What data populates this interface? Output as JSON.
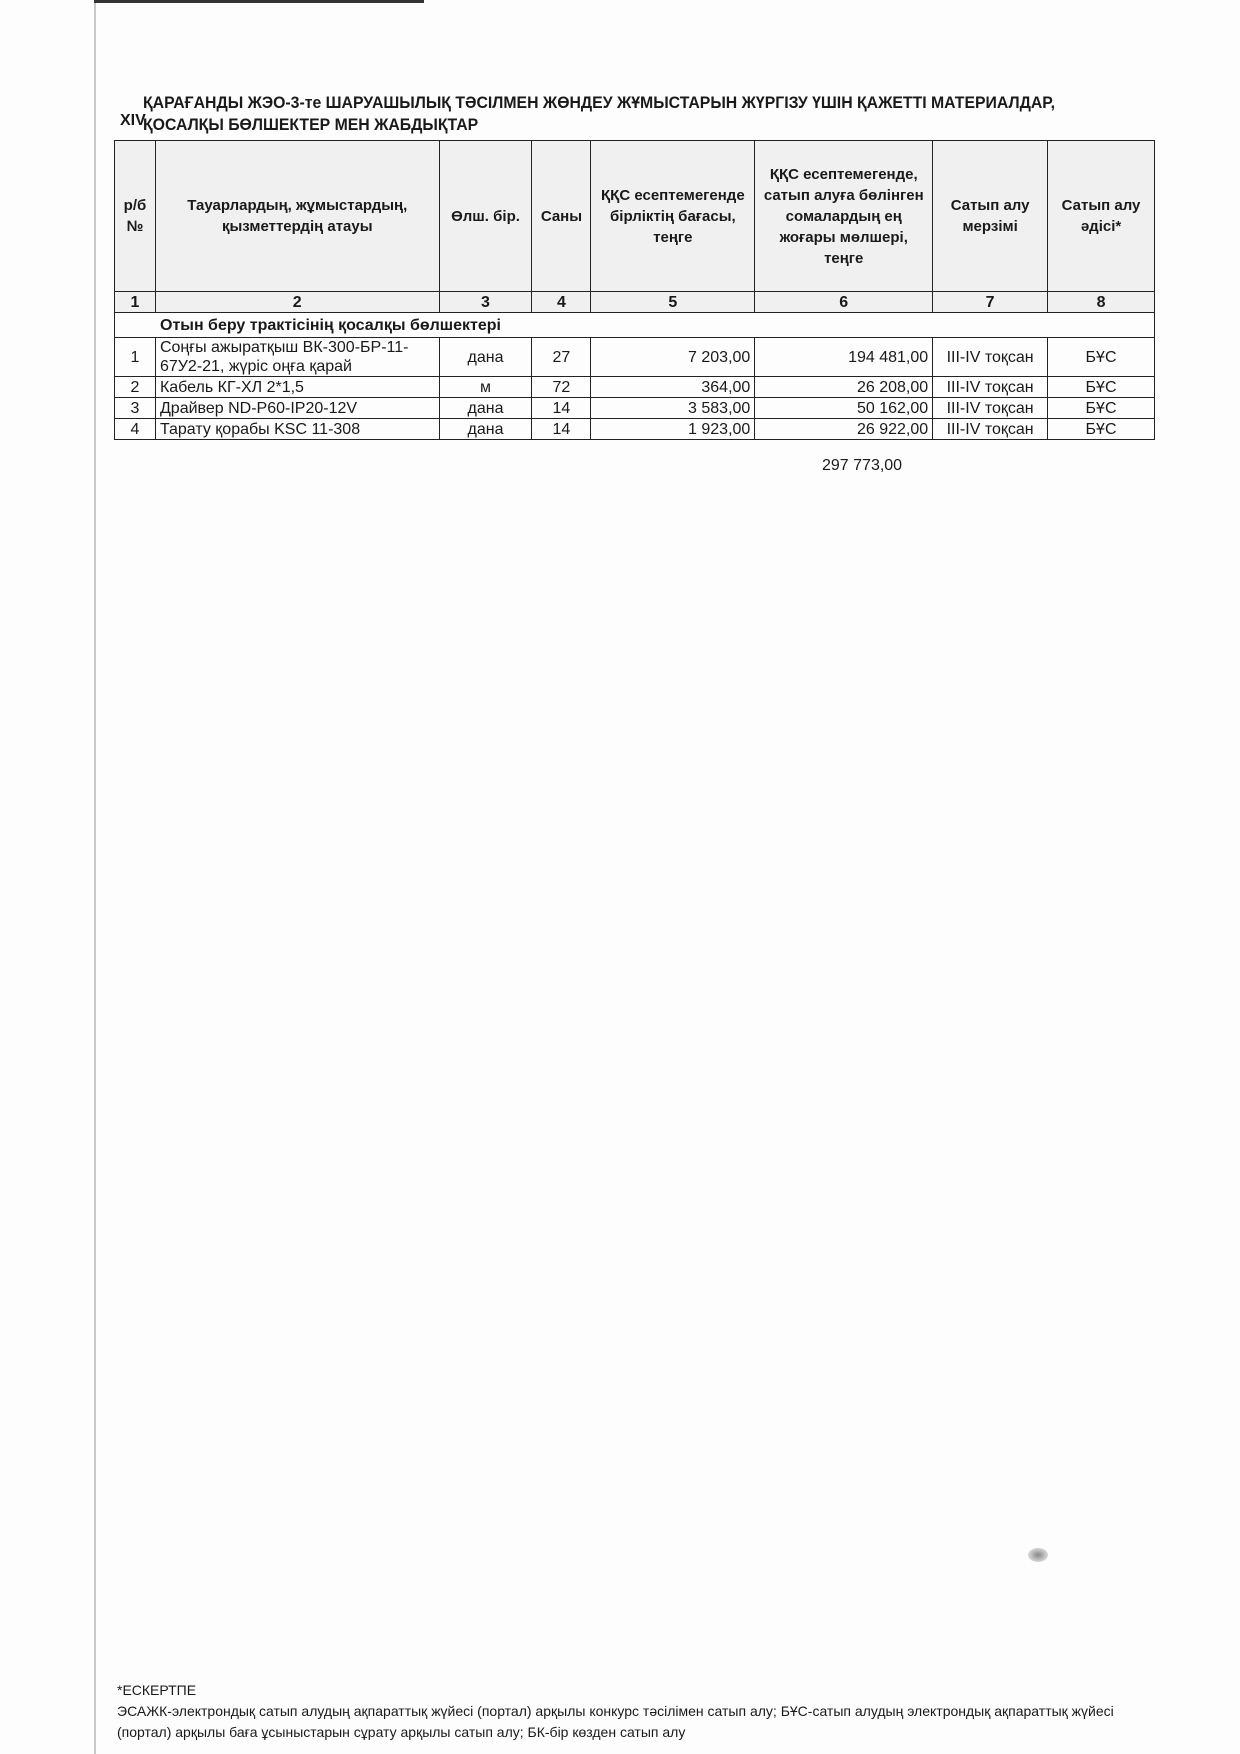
{
  "section_number": "XIV",
  "title_line1": "ҚАРАҒАНДЫ ЖЭО-3-те ШАРУАШЫЛЫҚ ТӘСІЛМЕН ЖӨНДЕУ ЖҰМЫСТАРЫН ЖҮРГІЗУ ҮШІН ҚАЖЕТТІ МАТЕРИАЛДАР,",
  "title_line2": "ҚОСАЛҚЫ БӨЛШЕКТЕР МЕН ЖАБДЫҚТАР",
  "headers": [
    "р/б №",
    "Тауарлардың, жұмыстардың, қызметтердің атауы",
    "Өлш. бір.",
    "Саны",
    "ҚҚС есептемегенде бірліктің бағасы, теңге",
    "ҚҚС есептемегенде, сатып алуға бөлінген сомалардың ең жоғары мөлшері, теңге",
    "Сатып алу мерзімі",
    "Сатып алу әдісі*"
  ],
  "column_numbers": [
    "1",
    "2",
    "3",
    "4",
    "5",
    "6",
    "7",
    "8"
  ],
  "group_title": "Отын беру трактісінің қосалқы бөлшектері",
  "rows": [
    {
      "no": "1",
      "name": "Соңғы ажыратқыш ВК-300-БР-11-67У2-21, жүріс оңға қарай",
      "unit": "дана",
      "qty": "27",
      "price": "7 203,00",
      "amount": "194 481,00",
      "period": "III-IV тоқсан",
      "method": "БҰС"
    },
    {
      "no": "2",
      "name": "Кабель КГ-ХЛ 2*1,5",
      "unit": "м",
      "qty": "72",
      "price": "364,00",
      "amount": "26 208,00",
      "period": "III-IV тоқсан",
      "method": "БҰС"
    },
    {
      "no": "3",
      "name": "Драйвер ND-P60-IP20-12V",
      "unit": "дана",
      "qty": "14",
      "price": "3 583,00",
      "amount": "50 162,00",
      "period": "III-IV тоқсан",
      "method": "БҰС"
    },
    {
      "no": "4",
      "name": "Тарату қорабы KSC 11-308",
      "unit": "дана",
      "qty": "14",
      "price": "1 923,00",
      "amount": "26 922,00",
      "period": "III-IV тоқсан",
      "method": "БҰС"
    }
  ],
  "total": "297 773,00",
  "note_title": "*ЕСКЕРТПЕ",
  "note_text": "ЭСАЖК-электрондық сатып алудың ақпараттық жүйесі (портал) арқылы конкурс тәсілімен сатып алу; БҰС-сатып алудың электрондық ақпараттық жүйесі (портал) арқылы баға ұсыныстарын сұрату арқылы сатып алу; БК-бір көзден сатып алу"
}
